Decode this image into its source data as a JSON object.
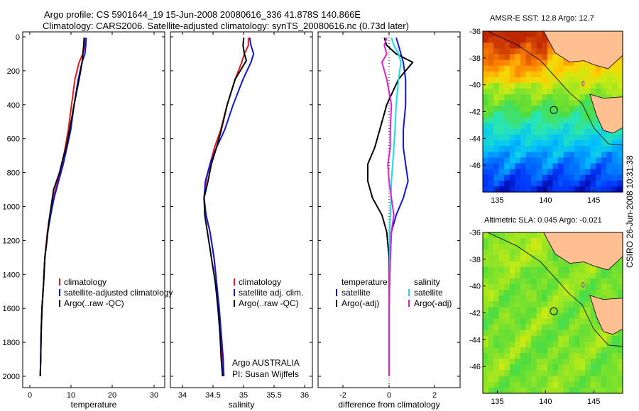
{
  "header": {
    "line1": "Argo profile: CS 5901644_19 15-Jun-2008 20080616_336 41.878S 140.866E",
    "line2": "Climatology: CARS2006. Satellite-adjusted climatology: synTS_20080616.nc (0.73d later)"
  },
  "stamp": "CSIRO 26-Jun-2008 10:31:38",
  "colors": {
    "clim": "#e81818",
    "sat": "#1414e0",
    "argo": "#000000",
    "sat_sal": "#18e0e0",
    "argo_sal": "#e020d0"
  },
  "chart_data": [
    {
      "type": "line",
      "xlabel": "temperature",
      "ylabel": "",
      "xlim": [
        -2,
        32
      ],
      "ylim": [
        2080,
        0
      ],
      "xticks": [
        "0",
        "10",
        "20",
        "30"
      ],
      "yticks": [
        "0",
        "200",
        "400",
        "600",
        "800",
        "1000",
        "1200",
        "1400",
        "1600",
        "1800",
        "2000"
      ],
      "legend": [
        "climatology",
        "satellite-adjusted climatology",
        "Argo(..raw -QC)"
      ],
      "series": [
        {
          "name": "climatology",
          "color": "#e81818",
          "x": [
            12.9,
            12.8,
            12.4,
            11.5,
            10.5,
            9.7,
            8.9,
            8.2,
            7.4,
            6.4,
            5.3,
            4.6,
            3.9,
            3.3,
            3.0,
            2.6,
            2.4,
            2.3,
            2.2
          ],
          "y": [
            5,
            50,
            100,
            150,
            250,
            400,
            550,
            650,
            750,
            850,
            950,
            1050,
            1150,
            1300,
            1450,
            1600,
            1750,
            1900,
            2000
          ]
        },
        {
          "name": "satellite-adjusted climatology",
          "color": "#1414e0",
          "x": [
            13.2,
            13.1,
            12.9,
            12.2,
            11.3,
            10.3,
            9.5,
            8.6,
            7.7,
            6.6,
            5.5,
            4.7,
            4.0,
            3.3,
            3.0,
            2.6,
            2.4,
            2.3,
            2.2
          ],
          "y": [
            5,
            50,
            100,
            150,
            250,
            400,
            550,
            650,
            750,
            850,
            950,
            1050,
            1150,
            1300,
            1450,
            1600,
            1750,
            1900,
            2000
          ]
        },
        {
          "name": "Argo(..raw -QC)",
          "color": "#000000",
          "x": [
            12.7,
            12.6,
            12.4,
            12.3,
            11.5,
            10.3,
            9.2,
            8.4,
            7.6,
            6.8,
            5.4,
            4.8,
            4.2,
            3.8,
            3.3,
            3.0,
            2.6,
            2.4,
            2.3,
            2.2
          ],
          "y": [
            5,
            50,
            100,
            140,
            250,
            400,
            550,
            650,
            720,
            800,
            900,
            1000,
            1100,
            1200,
            1300,
            1450,
            1600,
            1750,
            1900,
            2000
          ]
        }
      ]
    },
    {
      "type": "line",
      "xlabel": "salinity",
      "ylabel": "",
      "xlim": [
        33.9,
        36.05
      ],
      "ylim": [
        2080,
        0
      ],
      "xticks": [
        "34",
        "34.5",
        "35",
        "35.5",
        "36"
      ],
      "legend": [
        "climatology",
        "satellite adj. clim.",
        "Argo(..raw -QC)"
      ],
      "annotation": [
        "Argo AUSTRALIA",
        "PI: Susan Wijffels"
      ],
      "series": [
        {
          "name": "climatology",
          "color": "#e81818",
          "x": [
            35.08,
            35.08,
            35.02,
            34.98,
            34.88,
            34.76,
            34.66,
            34.57,
            34.5,
            34.44,
            34.41,
            34.44,
            34.5,
            34.56,
            34.6,
            34.63,
            34.66,
            34.68,
            34.69
          ],
          "y": [
            5,
            50,
            100,
            150,
            250,
            400,
            550,
            650,
            750,
            850,
            950,
            1050,
            1150,
            1300,
            1450,
            1600,
            1750,
            1900,
            2000
          ]
        },
        {
          "name": "satellite adj. clim.",
          "color": "#1414e0",
          "x": [
            35.1,
            35.12,
            35.16,
            35.12,
            35.0,
            34.85,
            34.72,
            34.6,
            34.5,
            34.43,
            34.41,
            34.44,
            34.5,
            34.56,
            34.6,
            34.64,
            34.67,
            34.7,
            34.71
          ],
          "y": [
            5,
            50,
            100,
            150,
            250,
            400,
            550,
            650,
            750,
            850,
            950,
            1050,
            1150,
            1300,
            1450,
            1600,
            1750,
            1900,
            2000
          ]
        },
        {
          "name": "Argo(..raw -QC)",
          "color": "#000000",
          "x": [
            35.01,
            35.0,
            35.02,
            35.05,
            34.88,
            34.76,
            34.67,
            34.6,
            34.52,
            34.47,
            34.41,
            34.42,
            34.46,
            34.52,
            34.58,
            34.62,
            34.65,
            34.67,
            34.69
          ],
          "y": [
            5,
            50,
            100,
            140,
            250,
            400,
            550,
            650,
            750,
            850,
            950,
            1050,
            1150,
            1300,
            1450,
            1600,
            1750,
            1900,
            2000
          ]
        }
      ]
    },
    {
      "type": "line",
      "xlabel": "difference from climatology",
      "ylabel": "",
      "xlim": [
        -3,
        3
      ],
      "ylim": [
        2080,
        0
      ],
      "xticks": [
        "-2",
        "0",
        "2"
      ],
      "legend_left_title": "temperature",
      "legend_right_title": "salinity",
      "legend": [
        "satellite",
        "Argo(-adj)",
        "satellite",
        "Argo(-adj)"
      ],
      "series": [
        {
          "name": "satellite",
          "color": "#1414e0",
          "x": [
            0.3,
            0.4,
            0.5,
            0.6,
            0.7,
            0.7,
            0.6,
            0.6,
            0.7,
            0.8,
            0.6,
            0.3,
            0.1,
            0.05,
            0.02,
            0.0,
            0.0,
            0.0,
            0.0
          ],
          "y": [
            5,
            50,
            100,
            150,
            250,
            400,
            550,
            650,
            750,
            850,
            950,
            1050,
            1150,
            1300,
            1450,
            1600,
            1750,
            1900,
            2000
          ]
        },
        {
          "name": "Argo(-adj)",
          "color": "#000000",
          "x": [
            -0.2,
            -0.1,
            0.3,
            1.0,
            0.4,
            -0.1,
            -0.4,
            -0.6,
            -0.9,
            -0.9,
            -0.7,
            -0.3,
            -0.1,
            0.0,
            0.0,
            0.0,
            0.0,
            0.0,
            0.0
          ],
          "y": [
            5,
            50,
            100,
            150,
            250,
            400,
            550,
            650,
            750,
            850,
            950,
            1050,
            1150,
            1300,
            1450,
            1600,
            1750,
            1900,
            2000
          ]
        },
        {
          "name": "satellite",
          "color": "#18e0e0",
          "x": [
            0.1,
            0.2,
            0.4,
            0.5,
            0.4,
            0.3,
            0.25,
            0.2,
            0.15,
            0.1,
            0.08,
            0.05,
            0.03,
            0.02,
            0.01,
            0.0,
            0.0,
            0.0,
            0.0
          ],
          "y": [
            5,
            50,
            100,
            150,
            250,
            400,
            550,
            650,
            750,
            850,
            950,
            1050,
            1150,
            1300,
            1450,
            1600,
            1750,
            1900,
            2000
          ]
        },
        {
          "name": "Argo(-adj)",
          "color": "#e020d0",
          "x": [
            -0.1,
            -0.2,
            -0.1,
            -0.3,
            -0.1,
            0.1,
            0.05,
            0.05,
            -0.05,
            0.0,
            0.1,
            0.2,
            0.1,
            0.05,
            0.02,
            0.0,
            0.0,
            0.0,
            0.0
          ],
          "y": [
            5,
            50,
            100,
            150,
            250,
            400,
            550,
            650,
            750,
            850,
            950,
            1050,
            1150,
            1300,
            1450,
            1600,
            1750,
            1900,
            2000
          ]
        }
      ]
    },
    {
      "type": "heatmap",
      "title": "AMSR-E SST: 12.8 Argo: 12.7",
      "xlim": [
        133.5,
        148
      ],
      "ylim": [
        -48,
        -36
      ],
      "xticks": [
        "135",
        "140",
        "145"
      ],
      "yticks": [
        "-36",
        "-38",
        "-40",
        "-42",
        "-44",
        "-46"
      ],
      "marker": {
        "lon": 140.866,
        "lat": -41.878
      }
    },
    {
      "type": "heatmap",
      "title": "Altimetric SLA: 0.045 Argo: -0.021",
      "xlim": [
        133.5,
        148
      ],
      "ylim": [
        -48,
        -36
      ],
      "xticks": [
        "135",
        "140",
        "145"
      ],
      "yticks": [
        "-36",
        "-38",
        "-40",
        "-42",
        "-44",
        "-46"
      ],
      "marker": {
        "lon": 140.866,
        "lat": -41.878
      }
    }
  ]
}
